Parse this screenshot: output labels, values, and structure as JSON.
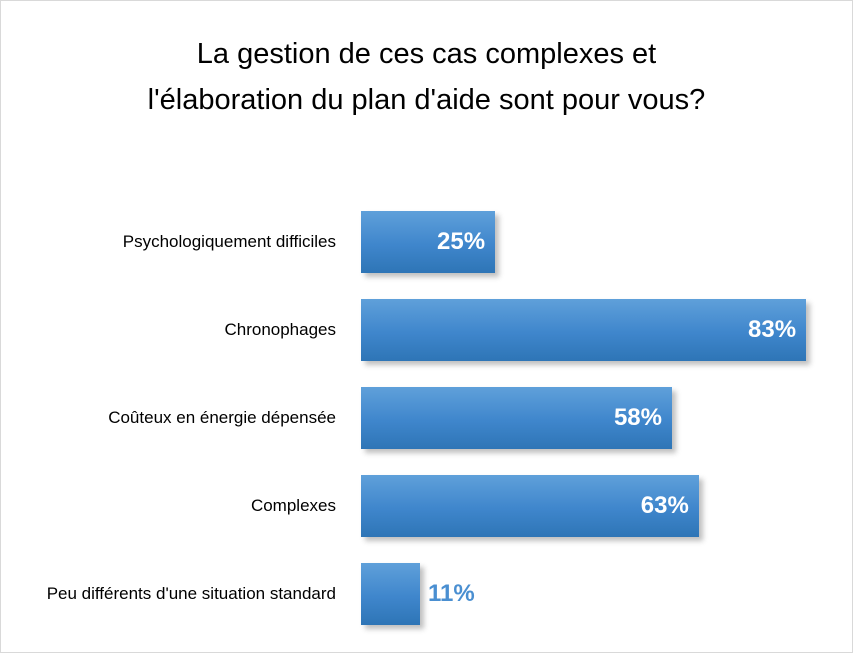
{
  "chart_data": {
    "type": "bar",
    "orientation": "horizontal",
    "title": "La gestion de ces cas complexes et l'élaboration du plan d'aide sont pour vous?",
    "categories": [
      "Psychologiquement difficiles",
      "Chronophages",
      "Coûteux en énergie dépensée",
      "Complexes",
      "Peu différents d'une situation standard"
    ],
    "values": [
      25,
      83,
      58,
      63,
      11
    ],
    "value_labels": [
      "25%",
      "83%",
      "58%",
      "63%",
      "11%"
    ],
    "color": "#4a8fd1"
  }
}
